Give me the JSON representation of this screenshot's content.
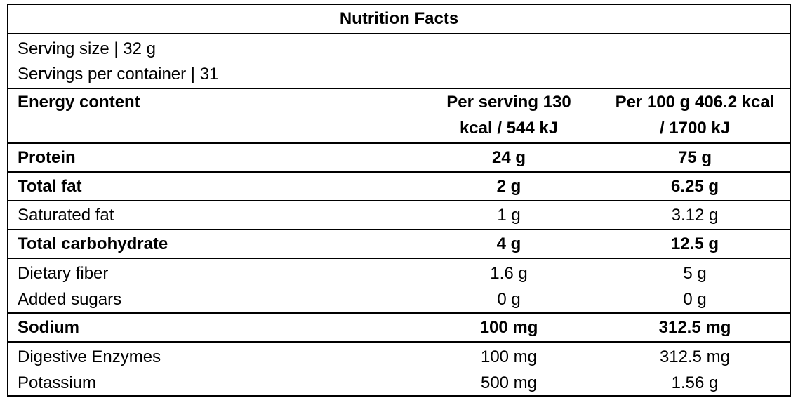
{
  "title": "Nutrition Facts",
  "serving": [
    "Serving size | 32 g",
    "Servings per container | 31"
  ],
  "header": [
    "Energy content",
    "Per serving 130 kcal / 544 kJ",
    "Per 100 g 406.2 kcal / 1700 kJ"
  ],
  "rows": [
    [
      "Protein",
      "24 g",
      "75 g"
    ],
    [
      "Total fat",
      "2 g",
      "6.25 g"
    ],
    [
      "Saturated fat",
      "1 g",
      "3.12 g"
    ],
    [
      "Total carbohydrate",
      "4 g",
      "12.5 g"
    ],
    [
      "Dietary fiber",
      "1.6 g",
      "5 g"
    ],
    [
      "Added sugars",
      "0 g",
      "0 g"
    ],
    [
      "Sodium",
      "100 mg",
      "312.5 mg"
    ],
    [
      "Digestive Enzymes",
      "100 mg",
      "312.5 mg"
    ],
    [
      "Potassium",
      "500 mg",
      "1.56 g"
    ]
  ]
}
